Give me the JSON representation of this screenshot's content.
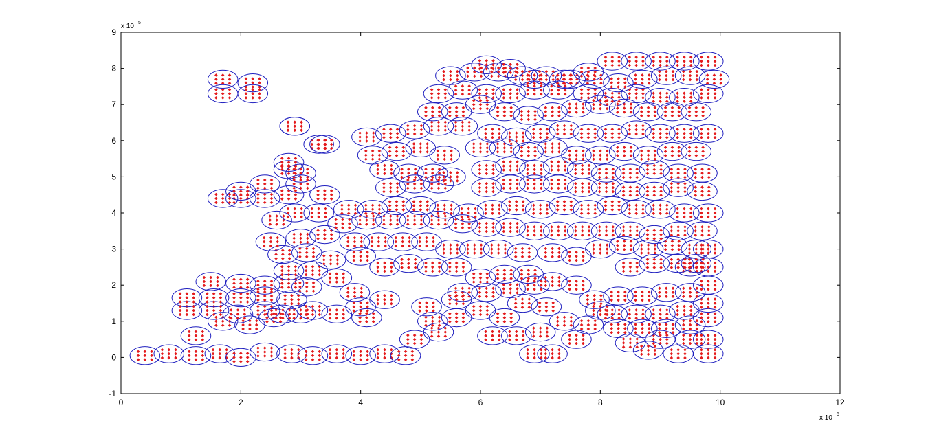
{
  "chart_data": {
    "type": "scatter",
    "title": "",
    "xlabel": "",
    "ylabel": "",
    "xlim": [
      0,
      1200000
    ],
    "ylim": [
      -100000,
      900000
    ],
    "xticks": [
      0,
      200000,
      400000,
      600000,
      800000,
      1000000,
      1200000
    ],
    "yticks": [
      -100000,
      0,
      100000,
      200000,
      300000,
      400000,
      500000,
      600000,
      700000,
      800000,
      900000
    ],
    "xtick_labels": [
      "0",
      "2",
      "4",
      "6",
      "8",
      "10",
      "12"
    ],
    "ytick_labels": [
      "-1",
      "0",
      "1",
      "2",
      "3",
      "4",
      "5",
      "6",
      "7",
      "8",
      "9"
    ],
    "x_multiplier": {
      "base": "x 10",
      "exponent": "5"
    },
    "y_multiplier": {
      "base": "x 10",
      "exponent": "5"
    },
    "grid": false,
    "legend": "none",
    "marker_style": {
      "point_color": "#e41a1c",
      "point_marker": "diamond",
      "ellipse_color": "#1f1fbf"
    },
    "ellipse_radii": {
      "rx": 25000,
      "ry": 25000
    },
    "series": [
      {
        "description": "ellipse centers (each ellipse encloses a cluster of red diamond points)",
        "centers": [
          [
            40000,
            5000
          ],
          [
            80000,
            10000
          ],
          [
            125000,
            5000
          ],
          [
            165000,
            10000
          ],
          [
            200000,
            0
          ],
          [
            240000,
            15000
          ],
          [
            285000,
            10000
          ],
          [
            320000,
            5000
          ],
          [
            360000,
            10000
          ],
          [
            400000,
            5000
          ],
          [
            440000,
            10000
          ],
          [
            475000,
            5000
          ],
          [
            125000,
            60000
          ],
          [
            170000,
            100000
          ],
          [
            215000,
            90000
          ],
          [
            255000,
            110000
          ],
          [
            110000,
            130000
          ],
          [
            155000,
            130000
          ],
          [
            195000,
            120000
          ],
          [
            240000,
            130000
          ],
          [
            110000,
            165000
          ],
          [
            155000,
            165000
          ],
          [
            200000,
            165000
          ],
          [
            240000,
            170000
          ],
          [
            150000,
            210000
          ],
          [
            200000,
            205000
          ],
          [
            240000,
            200000
          ],
          [
            280000,
            205000
          ],
          [
            300000,
            120000
          ],
          [
            285000,
            160000
          ],
          [
            280000,
            240000
          ],
          [
            320000,
            240000
          ],
          [
            360000,
            220000
          ],
          [
            310000,
            195000
          ],
          [
            270000,
            285000
          ],
          [
            310000,
            290000
          ],
          [
            350000,
            270000
          ],
          [
            400000,
            280000
          ],
          [
            440000,
            250000
          ],
          [
            480000,
            260000
          ],
          [
            520000,
            250000
          ],
          [
            560000,
            250000
          ],
          [
            600000,
            220000
          ],
          [
            640000,
            230000
          ],
          [
            680000,
            230000
          ],
          [
            390000,
            320000
          ],
          [
            430000,
            320000
          ],
          [
            470000,
            320000
          ],
          [
            510000,
            320000
          ],
          [
            550000,
            300000
          ],
          [
            590000,
            300000
          ],
          [
            630000,
            300000
          ],
          [
            670000,
            290000
          ],
          [
            720000,
            290000
          ],
          [
            760000,
            280000
          ],
          [
            800000,
            300000
          ],
          [
            840000,
            310000
          ],
          [
            880000,
            300000
          ],
          [
            920000,
            310000
          ],
          [
            960000,
            300000
          ],
          [
            300000,
            330000
          ],
          [
            340000,
            340000
          ],
          [
            370000,
            370000
          ],
          [
            410000,
            380000
          ],
          [
            450000,
            380000
          ],
          [
            490000,
            380000
          ],
          [
            530000,
            380000
          ],
          [
            570000,
            370000
          ],
          [
            610000,
            360000
          ],
          [
            650000,
            360000
          ],
          [
            690000,
            350000
          ],
          [
            730000,
            350000
          ],
          [
            770000,
            350000
          ],
          [
            810000,
            350000
          ],
          [
            850000,
            350000
          ],
          [
            890000,
            340000
          ],
          [
            930000,
            350000
          ],
          [
            970000,
            350000
          ],
          [
            250000,
            320000
          ],
          [
            260000,
            380000
          ],
          [
            290000,
            400000
          ],
          [
            330000,
            400000
          ],
          [
            380000,
            410000
          ],
          [
            420000,
            410000
          ],
          [
            460000,
            420000
          ],
          [
            500000,
            420000
          ],
          [
            540000,
            410000
          ],
          [
            580000,
            400000
          ],
          [
            620000,
            410000
          ],
          [
            660000,
            420000
          ],
          [
            700000,
            410000
          ],
          [
            740000,
            420000
          ],
          [
            780000,
            410000
          ],
          [
            820000,
            420000
          ],
          [
            860000,
            410000
          ],
          [
            900000,
            410000
          ],
          [
            940000,
            400000
          ],
          [
            980000,
            400000
          ],
          [
            200000,
            440000
          ],
          [
            240000,
            440000
          ],
          [
            280000,
            450000
          ],
          [
            300000,
            480000
          ],
          [
            340000,
            450000
          ],
          [
            450000,
            470000
          ],
          [
            490000,
            480000
          ],
          [
            530000,
            480000
          ],
          [
            610000,
            470000
          ],
          [
            650000,
            480000
          ],
          [
            690000,
            480000
          ],
          [
            730000,
            480000
          ],
          [
            770000,
            470000
          ],
          [
            810000,
            470000
          ],
          [
            850000,
            460000
          ],
          [
            890000,
            460000
          ],
          [
            930000,
            470000
          ],
          [
            970000,
            460000
          ],
          [
            170000,
            440000
          ],
          [
            200000,
            460000
          ],
          [
            240000,
            480000
          ],
          [
            280000,
            520000
          ],
          [
            300000,
            510000
          ],
          [
            440000,
            520000
          ],
          [
            480000,
            510000
          ],
          [
            520000,
            510000
          ],
          [
            550000,
            500000
          ],
          [
            610000,
            520000
          ],
          [
            650000,
            530000
          ],
          [
            690000,
            520000
          ],
          [
            730000,
            530000
          ],
          [
            770000,
            520000
          ],
          [
            810000,
            510000
          ],
          [
            850000,
            510000
          ],
          [
            890000,
            520000
          ],
          [
            930000,
            510000
          ],
          [
            970000,
            510000
          ],
          [
            280000,
            540000
          ],
          [
            420000,
            560000
          ],
          [
            460000,
            570000
          ],
          [
            500000,
            580000
          ],
          [
            540000,
            560000
          ],
          [
            600000,
            580000
          ],
          [
            640000,
            580000
          ],
          [
            680000,
            570000
          ],
          [
            720000,
            580000
          ],
          [
            760000,
            560000
          ],
          [
            800000,
            560000
          ],
          [
            840000,
            570000
          ],
          [
            880000,
            560000
          ],
          [
            920000,
            570000
          ],
          [
            960000,
            570000
          ],
          [
            290000,
            640000
          ],
          [
            330000,
            590000
          ],
          [
            410000,
            610000
          ],
          [
            450000,
            620000
          ],
          [
            490000,
            630000
          ],
          [
            530000,
            640000
          ],
          [
            570000,
            640000
          ],
          [
            620000,
            620000
          ],
          [
            660000,
            610000
          ],
          [
            700000,
            620000
          ],
          [
            740000,
            630000
          ],
          [
            780000,
            620000
          ],
          [
            820000,
            620000
          ],
          [
            860000,
            630000
          ],
          [
            900000,
            620000
          ],
          [
            940000,
            620000
          ],
          [
            980000,
            620000
          ],
          [
            520000,
            680000
          ],
          [
            560000,
            680000
          ],
          [
            600000,
            700000
          ],
          [
            640000,
            680000
          ],
          [
            680000,
            670000
          ],
          [
            720000,
            680000
          ],
          [
            760000,
            690000
          ],
          [
            800000,
            700000
          ],
          [
            840000,
            690000
          ],
          [
            880000,
            680000
          ],
          [
            920000,
            680000
          ],
          [
            960000,
            680000
          ],
          [
            530000,
            730000
          ],
          [
            570000,
            740000
          ],
          [
            610000,
            730000
          ],
          [
            650000,
            730000
          ],
          [
            690000,
            740000
          ],
          [
            730000,
            740000
          ],
          [
            780000,
            730000
          ],
          [
            820000,
            720000
          ],
          [
            860000,
            730000
          ],
          [
            900000,
            720000
          ],
          [
            940000,
            720000
          ],
          [
            980000,
            730000
          ],
          [
            550000,
            780000
          ],
          [
            590000,
            790000
          ],
          [
            630000,
            790000
          ],
          [
            670000,
            780000
          ],
          [
            710000,
            780000
          ],
          [
            750000,
            770000
          ],
          [
            790000,
            770000
          ],
          [
            830000,
            760000
          ],
          [
            870000,
            770000
          ],
          [
            910000,
            780000
          ],
          [
            950000,
            780000
          ],
          [
            990000,
            770000
          ],
          [
            610000,
            810000
          ],
          [
            650000,
            800000
          ],
          [
            690000,
            770000
          ],
          [
            740000,
            770000
          ],
          [
            780000,
            790000
          ],
          [
            820000,
            820000
          ],
          [
            860000,
            820000
          ],
          [
            900000,
            820000
          ],
          [
            940000,
            820000
          ],
          [
            980000,
            820000
          ],
          [
            170000,
            770000
          ],
          [
            220000,
            760000
          ],
          [
            170000,
            730000
          ],
          [
            220000,
            730000
          ],
          [
            290000,
            640000
          ],
          [
            340000,
            590000
          ],
          [
            410000,
            110000
          ],
          [
            440000,
            160000
          ],
          [
            490000,
            50000
          ],
          [
            530000,
            70000
          ],
          [
            560000,
            110000
          ],
          [
            510000,
            140000
          ],
          [
            700000,
            70000
          ],
          [
            710000,
            140000
          ],
          [
            740000,
            100000
          ],
          [
            690000,
            10000
          ],
          [
            720000,
            10000
          ],
          [
            760000,
            50000
          ],
          [
            780000,
            90000
          ],
          [
            800000,
            130000
          ],
          [
            850000,
            40000
          ],
          [
            900000,
            50000
          ],
          [
            950000,
            50000
          ],
          [
            980000,
            50000
          ],
          [
            830000,
            80000
          ],
          [
            870000,
            80000
          ],
          [
            910000,
            80000
          ],
          [
            950000,
            90000
          ],
          [
            980000,
            110000
          ],
          [
            820000,
            120000
          ],
          [
            860000,
            120000
          ],
          [
            900000,
            120000
          ],
          [
            940000,
            130000
          ],
          [
            980000,
            150000
          ],
          [
            790000,
            160000
          ],
          [
            830000,
            170000
          ],
          [
            870000,
            170000
          ],
          [
            910000,
            180000
          ],
          [
            950000,
            180000
          ],
          [
            980000,
            200000
          ],
          [
            950000,
            250000
          ],
          [
            980000,
            250000
          ],
          [
            570000,
            180000
          ],
          [
            600000,
            130000
          ],
          [
            640000,
            110000
          ],
          [
            670000,
            150000
          ],
          [
            610000,
            180000
          ],
          [
            650000,
            190000
          ],
          [
            690000,
            200000
          ],
          [
            720000,
            210000
          ],
          [
            760000,
            200000
          ],
          [
            270000,
            120000
          ],
          [
            320000,
            130000
          ],
          [
            360000,
            120000
          ],
          [
            390000,
            180000
          ],
          [
            400000,
            140000
          ],
          [
            520000,
            100000
          ],
          [
            560000,
            160000
          ],
          [
            620000,
            60000
          ],
          [
            660000,
            60000
          ],
          [
            880000,
            20000
          ],
          [
            930000,
            10000
          ],
          [
            980000,
            10000
          ],
          [
            850000,
            250000
          ],
          [
            890000,
            260000
          ],
          [
            930000,
            260000
          ],
          [
            960000,
            260000
          ],
          [
            980000,
            300000
          ]
        ]
      }
    ]
  }
}
